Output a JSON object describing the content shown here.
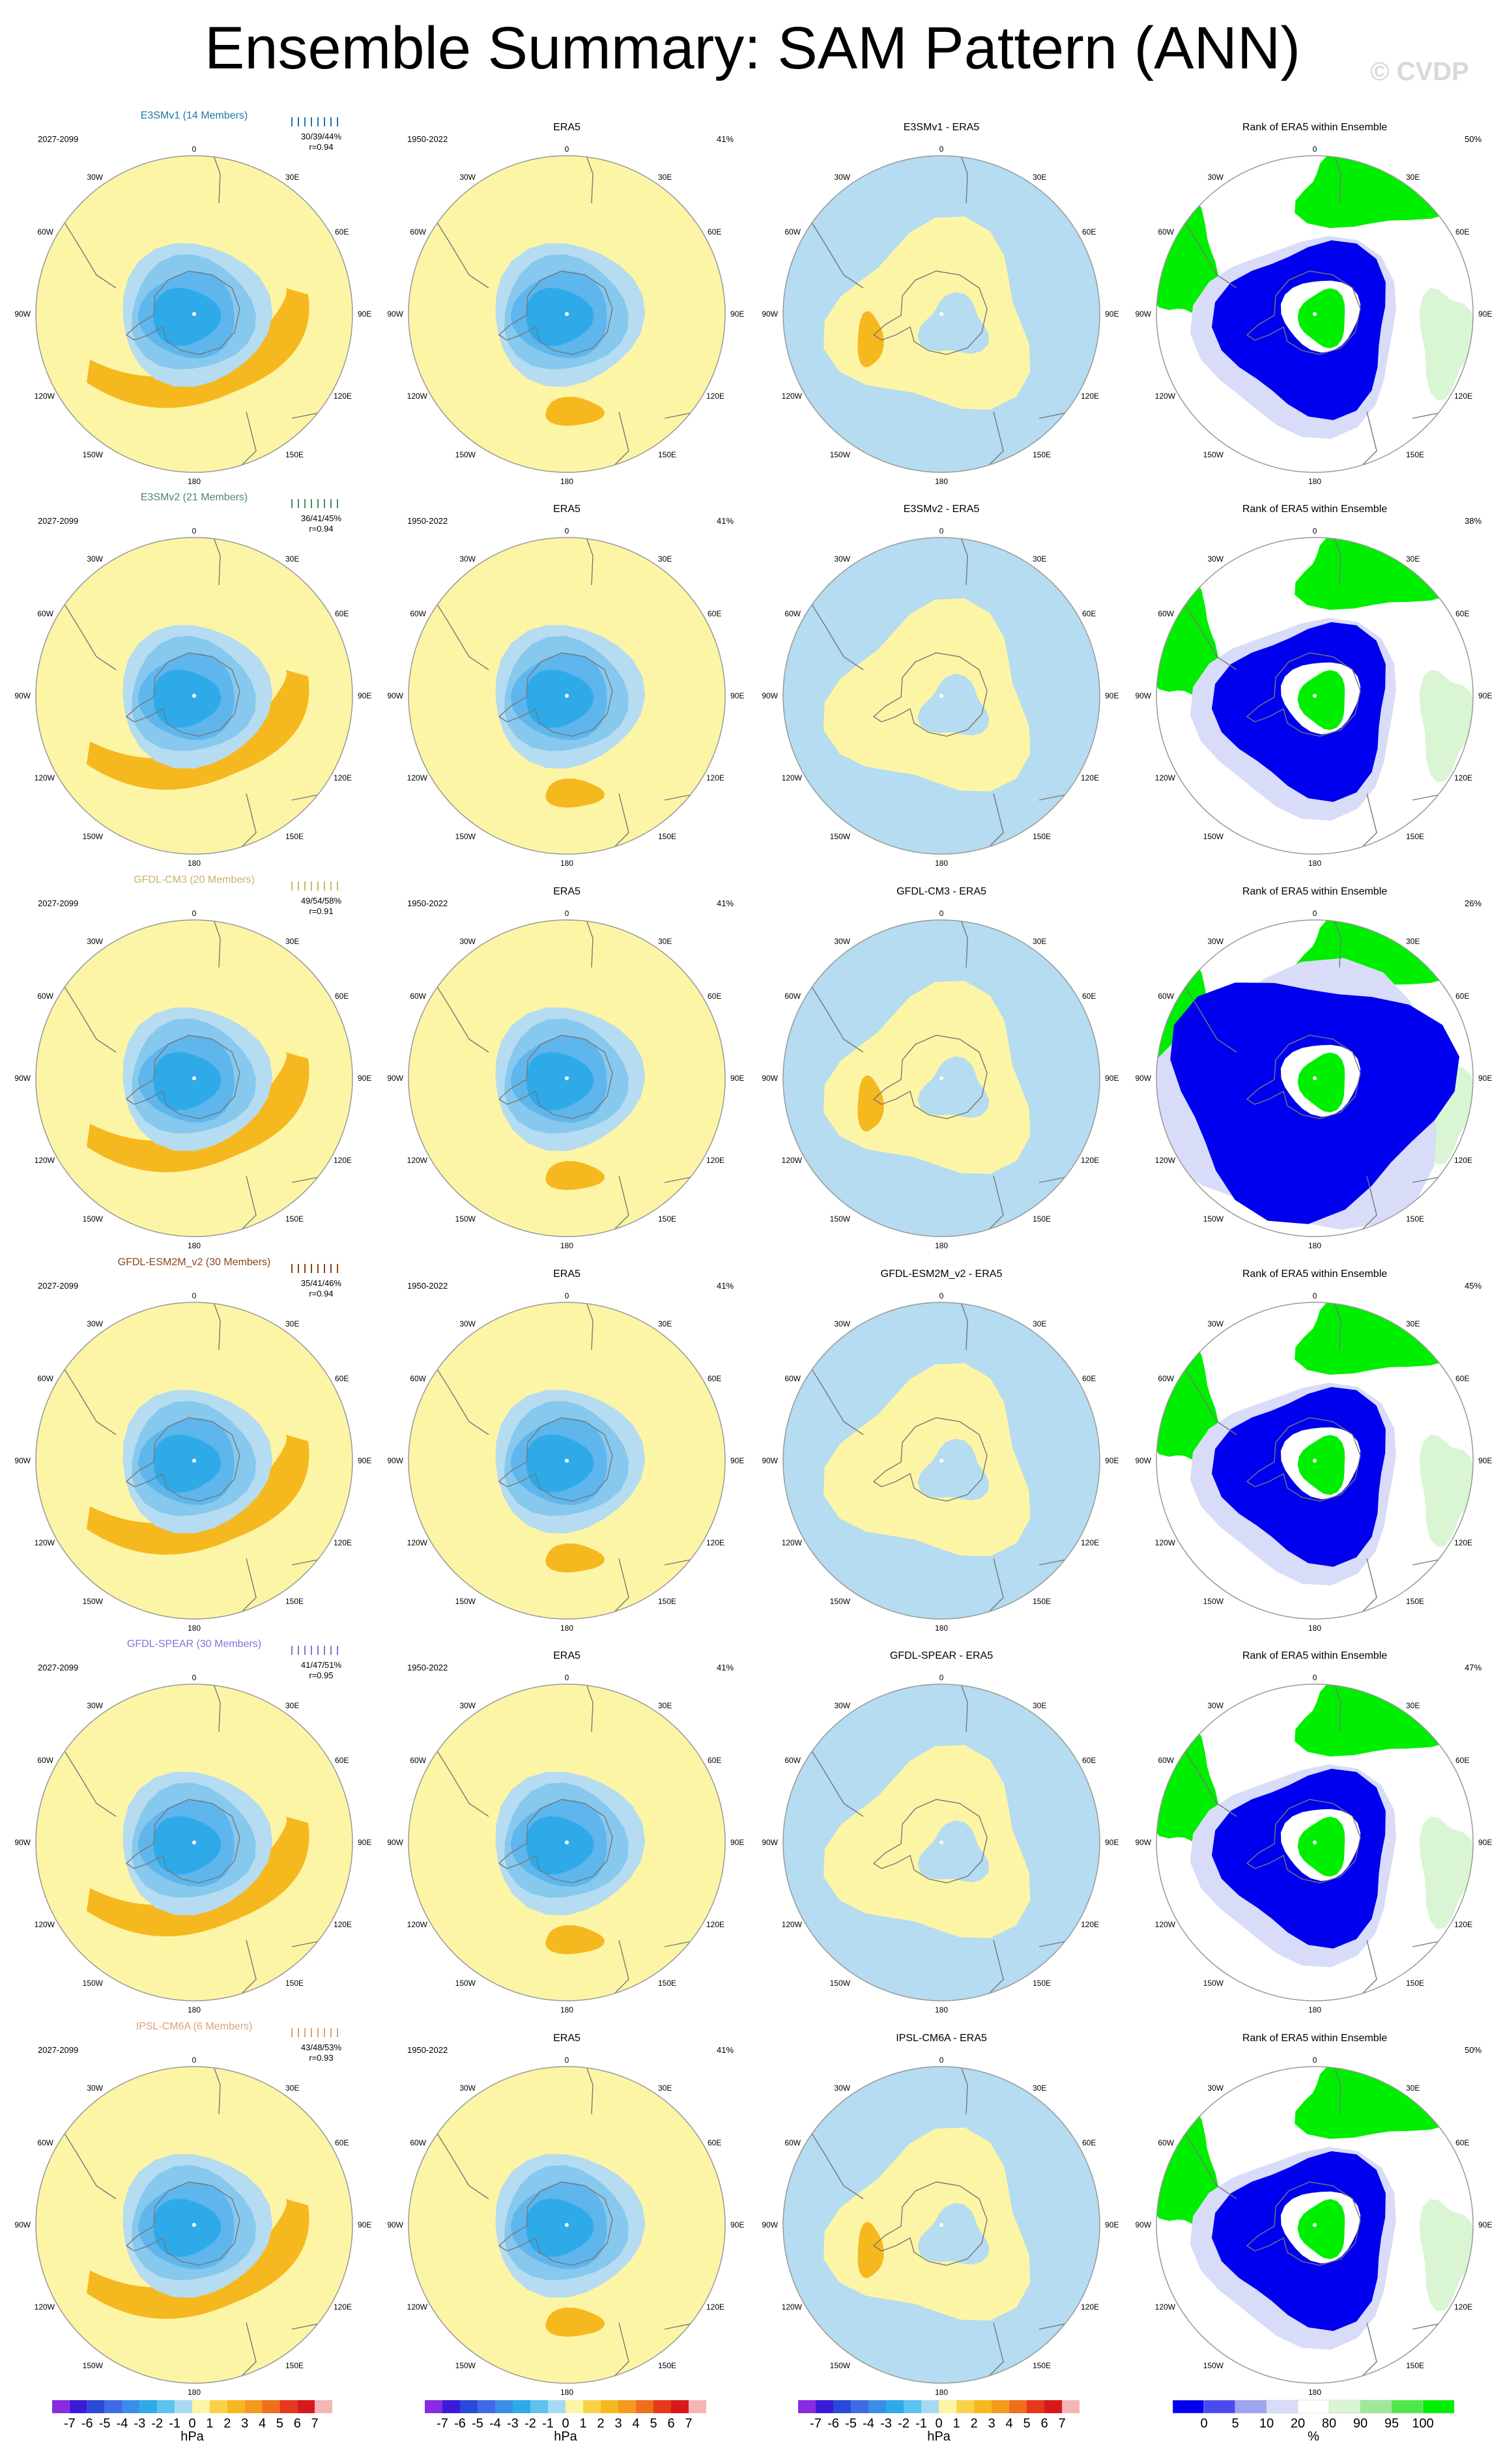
{
  "title": "Ensemble Summary: SAM Pattern (ANN)",
  "watermark": "© CVDP",
  "colors": {
    "ocean_land_bg": "#fdf5a6",
    "pos1": "#f9d24a",
    "pos2": "#f6b81f",
    "neg1": "#b5dcf0",
    "neg2": "#86c8ee",
    "neg3": "#5eb6ec",
    "neg4": "#2eaae9",
    "rank_blue": "#0000ee",
    "rank_lblue": "#d8dcf8",
    "rank_white": "#ffffff",
    "rank_lgreen": "#d9f5d4",
    "rank_green": "#00ee00",
    "coast": "#777777"
  },
  "grid_labels": {
    "top": "0",
    "bottom": "180",
    "upper_left": "30W",
    "upper_right": "30E",
    "left_upper": "60W",
    "right_upper": "60E",
    "left": "90W",
    "right": "90E",
    "left_lower": "120W",
    "right_lower": "120E",
    "lower_left": "150W",
    "lower_right": "150E"
  },
  "era5": {
    "title": "ERA5",
    "period": "1950-2022",
    "pct": "41%"
  },
  "rows": [
    {
      "model": "E3SMv1 (14 Members)",
      "model_color": "#1f77a8",
      "period": "2027-2099",
      "stats": "30/39/44%",
      "r": "r=0.94",
      "diff_title": "E3SMv1 - ERA5",
      "rank_title": "Rank of ERA5 within Ensemble",
      "rank_pct": "50%"
    },
    {
      "model": "E3SMv2 (21 Members)",
      "model_color": "#4f8a62",
      "period": "2027-2099",
      "stats": "36/41/45%",
      "r": "r=0.94",
      "diff_title": "E3SMv2 - ERA5",
      "rank_title": "Rank of ERA5 within Ensemble",
      "rank_pct": "38%"
    },
    {
      "model": "GFDL-CM3 (20 Members)",
      "model_color": "#c9b36a",
      "period": "2027-2099",
      "stats": "49/54/58%",
      "r": "r=0.91",
      "diff_title": "GFDL-CM3 - ERA5",
      "rank_title": "Rank of ERA5 within Ensemble",
      "rank_pct": "26%"
    },
    {
      "model": "GFDL-ESM2M_v2 (30 Members)",
      "model_color": "#8b4513",
      "period": "2027-2099",
      "stats": "35/41/46%",
      "r": "r=0.94",
      "diff_title": "GFDL-ESM2M_v2 - ERA5",
      "rank_title": "Rank of ERA5 within Ensemble",
      "rank_pct": "45%"
    },
    {
      "model": "GFDL-SPEAR (30 Members)",
      "model_color": "#8e6fd6",
      "period": "2027-2099",
      "stats": "41/47/51%",
      "r": "r=0.95",
      "diff_title": "GFDL-SPEAR - ERA5",
      "rank_title": "Rank of ERA5 within Ensemble",
      "rank_pct": "47%"
    },
    {
      "model": "IPSL-CM6A (6 Members)",
      "model_color": "#d7a37a",
      "period": "2027-2099",
      "stats": "43/48/53%",
      "r": "r=0.93",
      "diff_title": "IPSL-CM6A - ERA5",
      "rank_title": "Rank of ERA5 within Ensemble",
      "rank_pct": "50%"
    }
  ],
  "colorbar_hpa": {
    "unit": "hPa",
    "labels": [
      "-7",
      "-6",
      "-5",
      "-4",
      "-3",
      "-2",
      "-1",
      "0",
      "1",
      "2",
      "3",
      "4",
      "5",
      "6",
      "7"
    ],
    "colors": [
      "#8a2be2",
      "#3a1bd9",
      "#2b49d9",
      "#3f6be6",
      "#3a8ee8",
      "#2eaae9",
      "#5ec2ef",
      "#a7d9f2",
      "#fdf5a6",
      "#f9d24a",
      "#f6b81f",
      "#f59a1e",
      "#ef6e1c",
      "#e6381a",
      "#d8191b",
      "#f5b5b5"
    ]
  },
  "colorbar_pct": {
    "unit": "%",
    "labels": [
      "0",
      "5",
      "10",
      "20",
      "80",
      "90",
      "95",
      "100"
    ],
    "colors": [
      "#0000ee",
      "#4a4af0",
      "#9ea3f2",
      "#d8dcf8",
      "#ffffff",
      "#d9f5d4",
      "#9de89a",
      "#4fe84a",
      "#00ee00"
    ]
  },
  "chart_data": {
    "type": "heatmap",
    "title": "Ensemble Summary: SAM Pattern (ANN)",
    "description_of_panels": [
      "model ensemble mean pattern",
      "ERA5 pattern",
      "model minus ERA5",
      "rank of ERA5 within ensemble"
    ],
    "hpa_levels": [
      -7,
      -6,
      -5,
      -4,
      -3,
      -2,
      -1,
      0,
      1,
      2,
      3,
      4,
      5,
      6,
      7
    ],
    "pct_levels": [
      0,
      5,
      10,
      20,
      80,
      90,
      95,
      100
    ],
    "models": [
      "E3SMv1",
      "E3SMv2",
      "GFDL-CM3",
      "GFDL-ESM2M_v2",
      "GFDL-SPEAR",
      "IPSL-CM6A"
    ],
    "pattern_correlation": [
      0.94,
      0.94,
      0.91,
      0.94,
      0.95,
      0.93
    ],
    "pct_variance_explained": [
      "30/39/44%",
      "36/41/45%",
      "49/54/58%",
      "35/41/46%",
      "41/47/51%",
      "43/48/53%"
    ],
    "era5_pct_variance": "41%",
    "rank_pct": [
      "50%",
      "38%",
      "26%",
      "45%",
      "47%",
      "50%"
    ]
  }
}
